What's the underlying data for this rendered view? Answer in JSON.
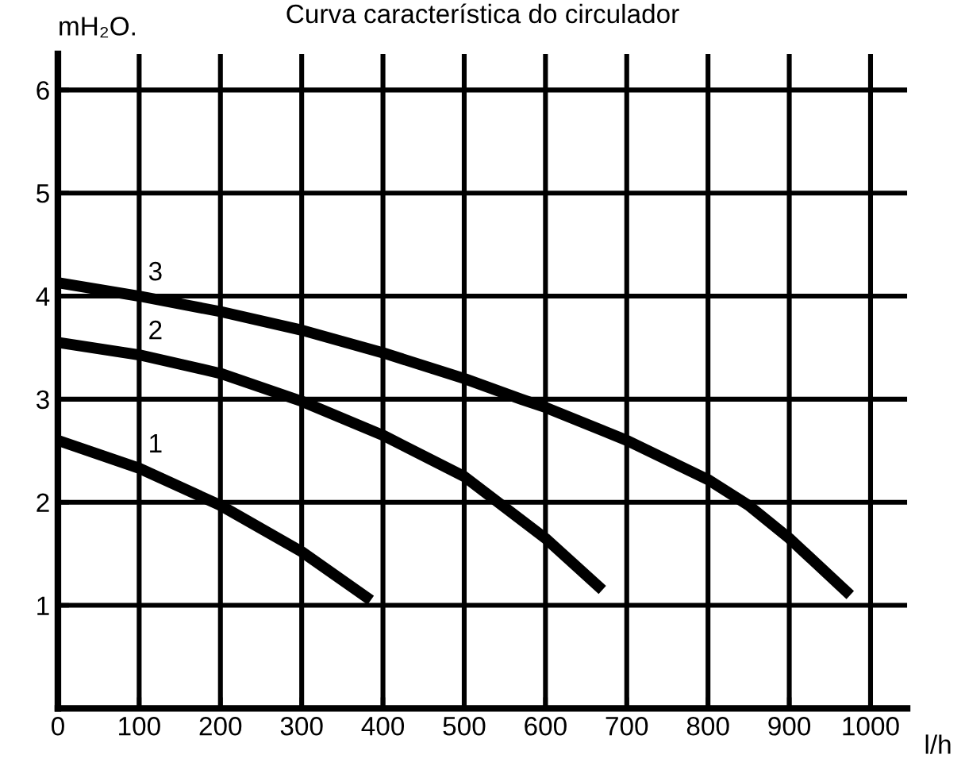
{
  "chart_data": {
    "type": "line",
    "title": "Curva característica do circulador",
    "ylabel": "mH₂O.",
    "xlabel": "l/h",
    "series": [
      {
        "name": "1",
        "color": "#000000",
        "x": [
          0,
          100,
          200,
          300,
          385
        ],
        "values": [
          2.6,
          2.33,
          1.97,
          1.52,
          1.05
        ]
      },
      {
        "name": "2",
        "color": "#000000",
        "x": [
          0,
          100,
          200,
          300,
          400,
          500,
          550,
          600,
          670
        ],
        "values": [
          3.55,
          3.43,
          3.25,
          2.98,
          2.65,
          2.25,
          1.95,
          1.65,
          1.15
        ]
      },
      {
        "name": "3",
        "color": "#000000",
        "x": [
          0,
          100,
          200,
          300,
          400,
          500,
          570,
          600,
          700,
          800,
          850,
          900,
          975
        ],
        "values": [
          4.13,
          4.0,
          3.85,
          3.67,
          3.45,
          3.2,
          3.0,
          2.92,
          2.6,
          2.22,
          1.97,
          1.65,
          1.1
        ]
      }
    ],
    "xlim": [
      0,
      1045
    ],
    "ylim": [
      0,
      6.35
    ],
    "xticks": [
      0,
      100,
      200,
      300,
      400,
      500,
      600,
      700,
      800,
      900,
      1000
    ],
    "yticks": [
      {
        "value": 0,
        "label": null
      },
      1,
      2,
      3,
      4,
      5,
      6
    ],
    "grid": true,
    "legend": false,
    "line_style": "solid",
    "marker": "none"
  }
}
